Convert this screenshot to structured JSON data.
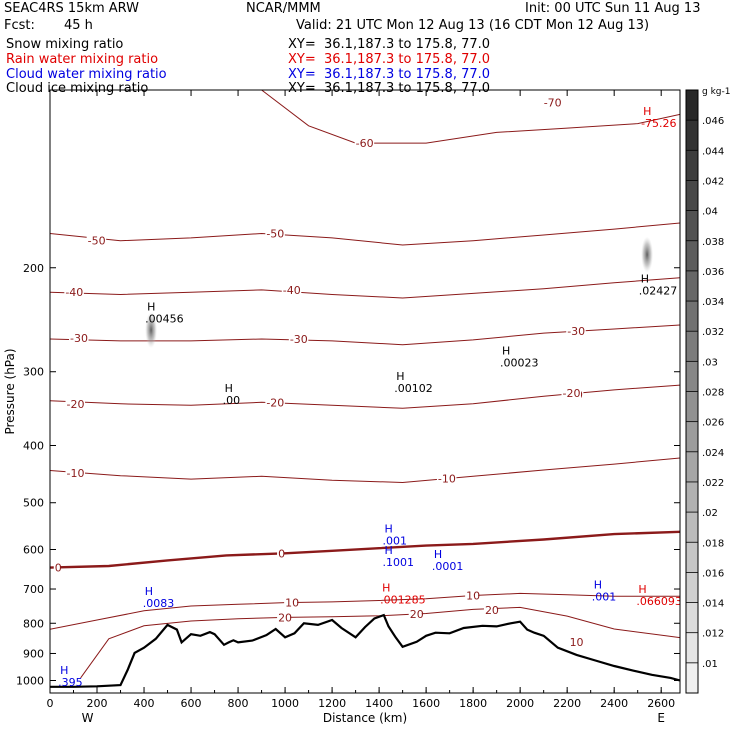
{
  "header": {
    "model": "SEAC4RS 15km ARW",
    "source": "NCAR/MMM",
    "init": "Init: 00 UTC Sun 11 Aug 13",
    "fcst_label": "Fcst:",
    "fcst_value": "45 h",
    "valid": "Valid: 21 UTC Mon 12 Aug 13 (16 CDT Mon 12 Aug 13)",
    "fields": [
      {
        "name": "Snow mixing ratio",
        "xy": "XY=  36.1,187.3 to 175.8, 77.0",
        "color": "#000000"
      },
      {
        "name": "Rain water mixing ratio",
        "xy": "XY=  36.1,187.3 to 175.8, 77.0",
        "color": "#e00000"
      },
      {
        "name": "Cloud water mixing ratio",
        "xy": "XY=  36.1,187.3 to 175.8, 77.0",
        "color": "#0000e0"
      },
      {
        "name": "Cloud ice mixing ratio",
        "xy": "XY=  36.1,187.3 to 175.8, 77.0",
        "color": "#000000"
      }
    ]
  },
  "chart_data": {
    "type": "cross-section",
    "xlabel": "Distance (km)",
    "ylabel": "Pressure (hPa)",
    "xlim": [
      0,
      2680
    ],
    "ylim": [
      1050,
      100
    ],
    "x_ticks": [
      0,
      200,
      400,
      600,
      800,
      1000,
      1200,
      1400,
      1600,
      1800,
      2000,
      2200,
      2400,
      2600
    ],
    "y_ticks": [
      200,
      300,
      400,
      500,
      600,
      700,
      800,
      900,
      1000
    ],
    "y_tick_labels": [
      "200",
      "300",
      "400",
      "500",
      "600",
      "700",
      "800",
      "900",
      "1000"
    ],
    "x_end_labels": {
      "left": "W",
      "right": "E"
    },
    "colors": {
      "isotherm": "#8b1a1a",
      "freezing_level": "#8b1a1a",
      "terrain": "#000000",
      "rain": "#e00000",
      "cloud_water": "#0000e0",
      "snow": "#000000"
    },
    "isotherms": [
      {
        "label": "-70",
        "pts": [
          [
            1880,
            100
          ],
          [
            2100,
            100
          ],
          [
            2400,
            100
          ],
          [
            2680,
            100
          ]
        ]
      },
      {
        "label": "-60",
        "pts": [
          [
            900,
            100
          ],
          [
            1100,
            115
          ],
          [
            1300,
            123
          ],
          [
            1600,
            123
          ],
          [
            1900,
            118
          ],
          [
            2200,
            116
          ],
          [
            2500,
            114
          ],
          [
            2680,
            110
          ]
        ]
      },
      {
        "label": "-50",
        "pts": [
          [
            0,
            175
          ],
          [
            300,
            180
          ],
          [
            600,
            178
          ],
          [
            900,
            175
          ],
          [
            1200,
            178
          ],
          [
            1500,
            183
          ],
          [
            1800,
            180
          ],
          [
            2100,
            176
          ],
          [
            2400,
            172
          ],
          [
            2680,
            168
          ]
        ]
      },
      {
        "label": "-40",
        "pts": [
          [
            0,
            220
          ],
          [
            300,
            222
          ],
          [
            600,
            220
          ],
          [
            900,
            218
          ],
          [
            1200,
            222
          ],
          [
            1500,
            225
          ],
          [
            1800,
            221
          ],
          [
            2100,
            217
          ],
          [
            2400,
            212
          ],
          [
            2680,
            208
          ]
        ]
      },
      {
        "label": "-30",
        "pts": [
          [
            0,
            264
          ],
          [
            300,
            266
          ],
          [
            600,
            266
          ],
          [
            900,
            264
          ],
          [
            1200,
            266
          ],
          [
            1500,
            270
          ],
          [
            1800,
            265
          ],
          [
            2100,
            258
          ],
          [
            2400,
            254
          ],
          [
            2680,
            250
          ]
        ]
      },
      {
        "label": "-20",
        "pts": [
          [
            0,
            336
          ],
          [
            300,
            340
          ],
          [
            600,
            342
          ],
          [
            900,
            338
          ],
          [
            1200,
            342
          ],
          [
            1500,
            346
          ],
          [
            1800,
            340
          ],
          [
            2100,
            330
          ],
          [
            2400,
            322
          ],
          [
            2680,
            316
          ]
        ]
      },
      {
        "label": "-10",
        "pts": [
          [
            0,
            441
          ],
          [
            300,
            450
          ],
          [
            600,
            456
          ],
          [
            900,
            451
          ],
          [
            1200,
            458
          ],
          [
            1500,
            462
          ],
          [
            1800,
            451
          ],
          [
            2100,
            440
          ],
          [
            2400,
            430
          ],
          [
            2680,
            420
          ]
        ]
      },
      {
        "label": "0",
        "pts": [
          [
            0,
            644
          ],
          [
            250,
            640
          ],
          [
            500,
            626
          ],
          [
            750,
            614
          ],
          [
            1000,
            609
          ],
          [
            1200,
            603
          ],
          [
            1400,
            597
          ],
          [
            1600,
            591
          ],
          [
            1800,
            587
          ],
          [
            2100,
            577
          ],
          [
            2400,
            565
          ],
          [
            2680,
            560
          ]
        ]
      },
      {
        "label": "10",
        "pts": [
          [
            0,
            819
          ],
          [
            200,
            790
          ],
          [
            400,
            762
          ],
          [
            600,
            748
          ],
          [
            800,
            743
          ],
          [
            1000,
            738
          ],
          [
            1200,
            736
          ],
          [
            1400,
            732
          ],
          [
            1600,
            727
          ],
          [
            1800,
            718
          ],
          [
            2000,
            712
          ],
          [
            2200,
            716
          ],
          [
            2400,
            720
          ],
          [
            2680,
            720
          ]
        ]
      },
      {
        "label": "20",
        "pts": [
          [
            130,
            990
          ],
          [
            250,
            850
          ],
          [
            400,
            808
          ],
          [
            600,
            793
          ],
          [
            800,
            786
          ],
          [
            1000,
            782
          ],
          [
            1200,
            780
          ],
          [
            1400,
            777
          ],
          [
            1600,
            770
          ],
          [
            1800,
            758
          ],
          [
            2000,
            752
          ],
          [
            2200,
            778
          ],
          [
            2400,
            818
          ],
          [
            2680,
            846
          ]
        ]
      }
    ],
    "terrain": {
      "x": [
        0,
        100,
        200,
        300,
        330,
        360,
        400,
        450,
        500,
        540,
        560,
        600,
        640,
        680,
        700,
        740,
        760,
        780,
        800,
        860,
        920,
        960,
        1000,
        1040,
        1080,
        1140,
        1200,
        1240,
        1300,
        1340,
        1380,
        1420,
        1440,
        1470,
        1500,
        1560,
        1600,
        1640,
        1700,
        1760,
        1840,
        1900,
        1960,
        2000,
        2030,
        2060,
        2100,
        2160,
        2240,
        2320,
        2400,
        2480,
        2560,
        2640,
        2680
      ],
      "p": [
        1025,
        1025,
        1023,
        1018,
        960,
        898,
        880,
        850,
        805,
        820,
        862,
        835,
        840,
        828,
        835,
        870,
        862,
        855,
        862,
        856,
        838,
        818,
        845,
        832,
        800,
        805,
        790,
        815,
        845,
        812,
        785,
        775,
        810,
        845,
        877,
        860,
        840,
        830,
        832,
        815,
        808,
        810,
        800,
        795,
        820,
        830,
        840,
        880,
        905,
        925,
        945,
        962,
        978,
        990,
        1000
      ]
    },
    "level_labels": [
      {
        "text": "-70",
        "x": 2130,
        "p": 105,
        "color": "#8b1a1a"
      },
      {
        "text": "-60",
        "x": 1330,
        "p": 123,
        "color": "#8b1a1a"
      },
      {
        "text": "-50",
        "x": 190,
        "p": 180,
        "color": "#8b1a1a"
      },
      {
        "text": "-50",
        "x": 950,
        "p": 175,
        "color": "#8b1a1a"
      },
      {
        "text": "-40",
        "x": 95,
        "p": 220,
        "color": "#8b1a1a"
      },
      {
        "text": "-40",
        "x": 1020,
        "p": 218,
        "color": "#8b1a1a"
      },
      {
        "text": "-30",
        "x": 115,
        "p": 263,
        "color": "#8b1a1a"
      },
      {
        "text": "-30",
        "x": 1050,
        "p": 264,
        "color": "#8b1a1a"
      },
      {
        "text": "-30",
        "x": 2230,
        "p": 256,
        "color": "#8b1a1a"
      },
      {
        "text": "-20",
        "x": 100,
        "p": 340,
        "color": "#8b1a1a"
      },
      {
        "text": "-20",
        "x": 950,
        "p": 338,
        "color": "#8b1a1a"
      },
      {
        "text": "-20",
        "x": 2220,
        "p": 328,
        "color": "#8b1a1a"
      },
      {
        "text": "-20",
        "x": 2210,
        "p": 326,
        "color": "#8b1a1a"
      },
      {
        "text": "-10",
        "x": 100,
        "p": 445,
        "color": "#8b1a1a"
      },
      {
        "text": "-10",
        "x": 1680,
        "p": 455,
        "color": "#8b1a1a"
      },
      {
        "text": "0",
        "x": 50,
        "p": 644,
        "color": "#8b1a1a"
      },
      {
        "text": "0",
        "x": 1000,
        "p": 609,
        "color": "#8b1a1a"
      },
      {
        "text": "10",
        "x": 1030,
        "p": 738,
        "color": "#8b1a1a"
      },
      {
        "text": "10",
        "x": 1800,
        "p": 718,
        "color": "#8b1a1a"
      },
      {
        "text": "10",
        "x": 2240,
        "p": 860,
        "color": "#8b1a1a"
      },
      {
        "text": "20",
        "x": 1000,
        "p": 782,
        "color": "#8b1a1a"
      },
      {
        "text": "20",
        "x": 1560,
        "p": 772,
        "color": "#8b1a1a"
      },
      {
        "text": "20",
        "x": 1880,
        "p": 759,
        "color": "#8b1a1a"
      }
    ],
    "maxima": [
      {
        "text": ".00456",
        "x": 430,
        "p": 240,
        "color": "#000000"
      },
      {
        "text": ".00",
        "x": 760,
        "p": 330,
        "color": "#000000"
      },
      {
        "text": ".00102",
        "x": 1490,
        "p": 315,
        "color": "#000000"
      },
      {
        "text": ".00023",
        "x": 1940,
        "p": 285,
        "color": "#000000"
      },
      {
        "text": ".02427",
        "x": 2530,
        "p": 215,
        "color": "#000000"
      },
      {
        "text": "-75.26",
        "x": 2540,
        "p": 112,
        "color": "#e00000"
      },
      {
        "text": ".001",
        "x": 1440,
        "p": 570,
        "color": "#0000e0"
      },
      {
        "text": ".1001",
        "x": 1440,
        "p": 620,
        "color": "#0000e0"
      },
      {
        "text": ".0001",
        "x": 1650,
        "p": 630,
        "color": "#0000e0"
      },
      {
        "text": ".0083",
        "x": 420,
        "p": 728,
        "color": "#0000e0"
      },
      {
        "text": ".001",
        "x": 2330,
        "p": 710,
        "color": "#0000e0"
      },
      {
        "text": ".001285",
        "x": 1430,
        "p": 718,
        "color": "#e00000"
      },
      {
        "text": ".066093",
        "x": 2520,
        "p": 722,
        "color": "#e00000"
      },
      {
        "text": ".395",
        "x": 60,
        "p": 990,
        "color": "#0000e0"
      }
    ],
    "colorbar": {
      "unit": "g kg-1",
      "labels": [
        ".046",
        ".044",
        ".042",
        ".04",
        ".038",
        ".036",
        ".034",
        ".032",
        ".03",
        ".028",
        ".026",
        ".024",
        ".022",
        ".02",
        ".018",
        ".016",
        ".014",
        ".012",
        ".01"
      ]
    }
  }
}
